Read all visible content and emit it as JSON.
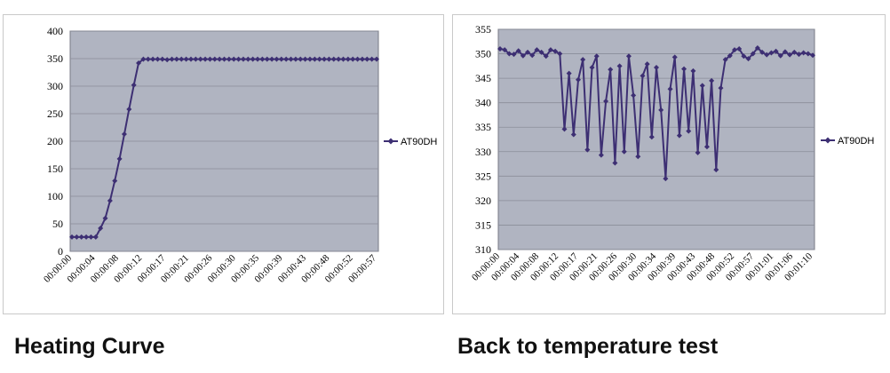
{
  "captions": {
    "left": "Heating Curve",
    "right": "Back to temperature test"
  },
  "colors": {
    "plot_background": "#b0b4c1",
    "series": "#3d2f73",
    "grid": "#8a8d99",
    "axis": "#000000"
  },
  "chart_data": [
    {
      "type": "line",
      "title": "",
      "xlabel": "",
      "ylabel": "",
      "ylim": [
        0,
        400
      ],
      "yticks": [
        0,
        50,
        100,
        150,
        200,
        250,
        300,
        350,
        400
      ],
      "grid": true,
      "legend_position": "right",
      "x_tick_labels": [
        "00:00:00",
        "00:00:04",
        "00:00:08",
        "00:00:12",
        "00:00:17",
        "00:00:21",
        "00:00:26",
        "00:00:30",
        "00:00:35",
        "00:00:39",
        "00:00:43",
        "00:00:48",
        "00:00:52",
        "00:00:57"
      ],
      "series": [
        {
          "name": "AT90DH",
          "values": [
            26,
            26,
            26,
            26,
            26,
            26,
            42,
            60,
            92,
            128,
            168,
            213,
            258,
            302,
            342,
            349,
            349,
            349,
            349,
            349,
            348,
            349,
            349,
            349,
            349,
            349,
            349,
            349,
            349,
            349,
            349,
            349,
            349,
            349,
            349,
            349,
            349,
            349,
            349,
            349,
            349,
            349,
            349,
            349,
            349,
            349,
            349,
            349,
            349,
            349,
            349,
            349,
            349,
            349,
            349,
            349,
            349,
            349,
            349,
            349,
            349,
            349,
            349,
            349,
            349
          ]
        }
      ]
    },
    {
      "type": "line",
      "title": "",
      "xlabel": "",
      "ylabel": "",
      "ylim": [
        310,
        355
      ],
      "yticks": [
        310,
        315,
        320,
        325,
        330,
        335,
        340,
        345,
        350,
        355
      ],
      "grid": true,
      "legend_position": "right",
      "x_tick_labels": [
        "00:00:00",
        "00:00:04",
        "00:00:08",
        "00:00:12",
        "00:00:17",
        "00:00:21",
        "00:00:26",
        "00:00:30",
        "00:00:34",
        "00:00:39",
        "00:00:43",
        "00:00:48",
        "00:00:52",
        "00:00:57",
        "00:01:01",
        "00:01:06",
        "00:01:10"
      ],
      "series": [
        {
          "name": "AT90DH",
          "values": [
            351,
            350.8,
            350,
            349.9,
            350.6,
            349.6,
            350.3,
            349.7,
            350.8,
            350.3,
            349.5,
            350.8,
            350.5,
            350,
            334.6,
            346,
            333.5,
            344.7,
            348.8,
            330.4,
            347.2,
            349.5,
            329.3,
            340.3,
            346.8,
            327.7,
            347.5,
            330,
            349.5,
            341.5,
            329,
            345.5,
            347.9,
            333,
            347.2,
            338.5,
            324.5,
            342.8,
            349.3,
            333.3,
            346.9,
            334.2,
            346.5,
            329.8,
            343.5,
            331,
            344.5,
            326.3,
            343,
            348.8,
            349.6,
            350.8,
            351,
            349.5,
            349,
            350,
            351.2,
            350.3,
            349.8,
            350.2,
            350.5,
            349.6,
            350.4,
            349.8,
            350.3,
            349.9,
            350.2,
            350,
            349.7
          ]
        }
      ]
    }
  ]
}
